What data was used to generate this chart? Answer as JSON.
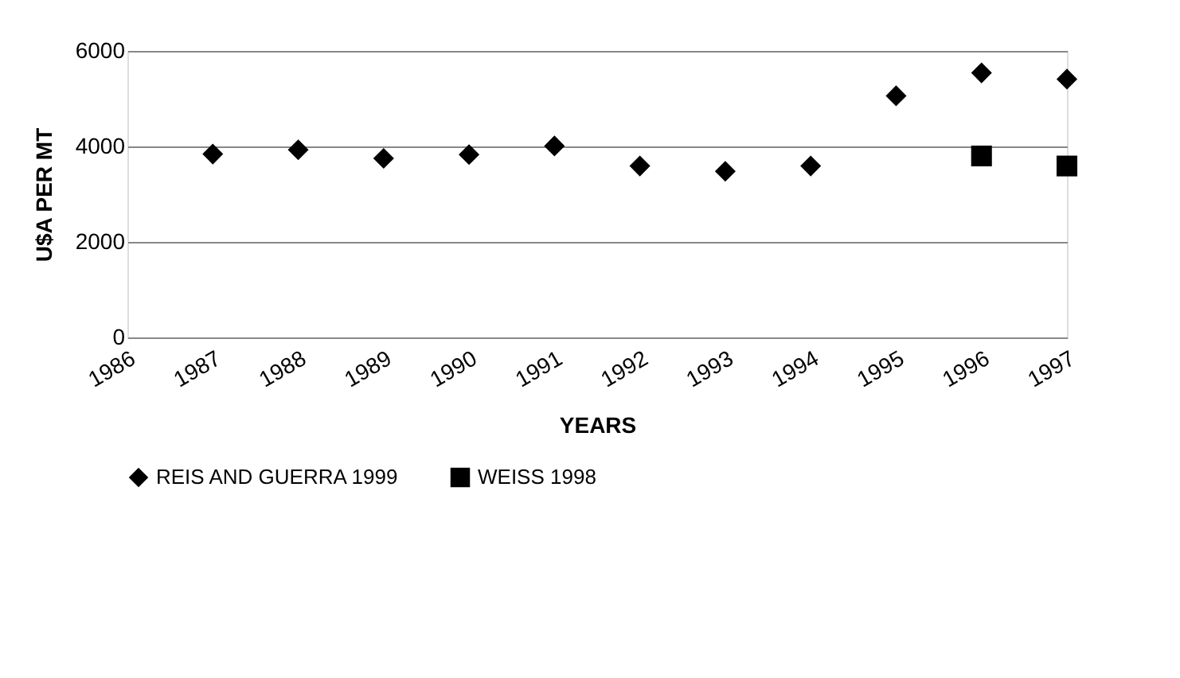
{
  "chart_data": {
    "type": "scatter",
    "xlabel": "YEARS",
    "ylabel": "U$A PER MT",
    "xlim": [
      1986,
      1997
    ],
    "xticks": [
      1986,
      1987,
      1988,
      1989,
      1990,
      1991,
      1992,
      1993,
      1994,
      1995,
      1996,
      1997
    ],
    "ylim": [
      0,
      6000
    ],
    "yticks": [
      0,
      2000,
      4000,
      6000
    ],
    "grid": "y",
    "legend": "bottom",
    "series": [
      {
        "name": "REIS AND GUERRA 1999",
        "color": "#000000",
        "marker": "diamond",
        "x": [
          1987,
          1988,
          1989,
          1990,
          1991,
          1992,
          1993,
          1994,
          1995,
          1996,
          1997
        ],
        "values": [
          3840,
          3930,
          3750,
          3830,
          4010,
          3590,
          3480,
          3590,
          5060,
          5540,
          5410
        ]
      },
      {
        "name": "WEISS 1998",
        "color": "#000000",
        "marker": "square",
        "x": [
          1996,
          1997
        ],
        "values": [
          3800,
          3590
        ]
      }
    ]
  }
}
